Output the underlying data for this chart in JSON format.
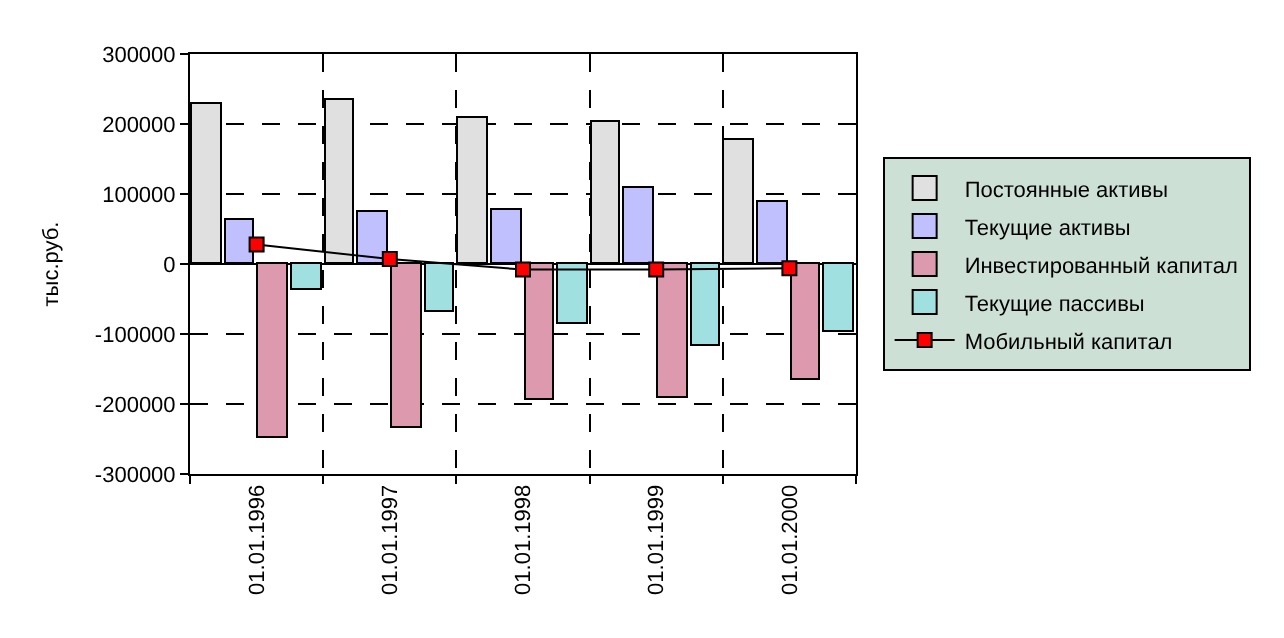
{
  "chart_data": {
    "type": "bar",
    "ylabel": "тыс.руб.",
    "categories": [
      "01.01.1996",
      "01.01.1997",
      "01.01.1998",
      "01.01.1999",
      "01.01.2000"
    ],
    "series": [
      {
        "name": "Постоянные активы",
        "color": "#e0e0e0",
        "values": [
          228000,
          234000,
          208000,
          202000,
          176000
        ]
      },
      {
        "name": "Текущие активы",
        "color": "#c0c0ff",
        "values": [
          64000,
          74000,
          78000,
          110000,
          90000
        ]
      },
      {
        "name": "Инвестированный капитал",
        "color": "#dd9aaf",
        "values": [
          -249000,
          -234000,
          -194000,
          -191000,
          -165000
        ]
      },
      {
        "name": "Текущие пассивы",
        "color": "#a0e0e0",
        "values": [
          -38000,
          -69000,
          -87000,
          -116000,
          -97000
        ]
      },
      {
        "name": "Мобильный капитал",
        "color": "#ff0000",
        "type": "line",
        "marker": "square",
        "values": [
          28000,
          7000,
          -8000,
          -8000,
          -6000
        ]
      }
    ],
    "ylim": [
      -300000,
      300000
    ],
    "yticks": [
      -300000,
      -200000,
      -100000,
      0,
      100000,
      200000,
      300000
    ],
    "grid": true,
    "legend": "right"
  }
}
